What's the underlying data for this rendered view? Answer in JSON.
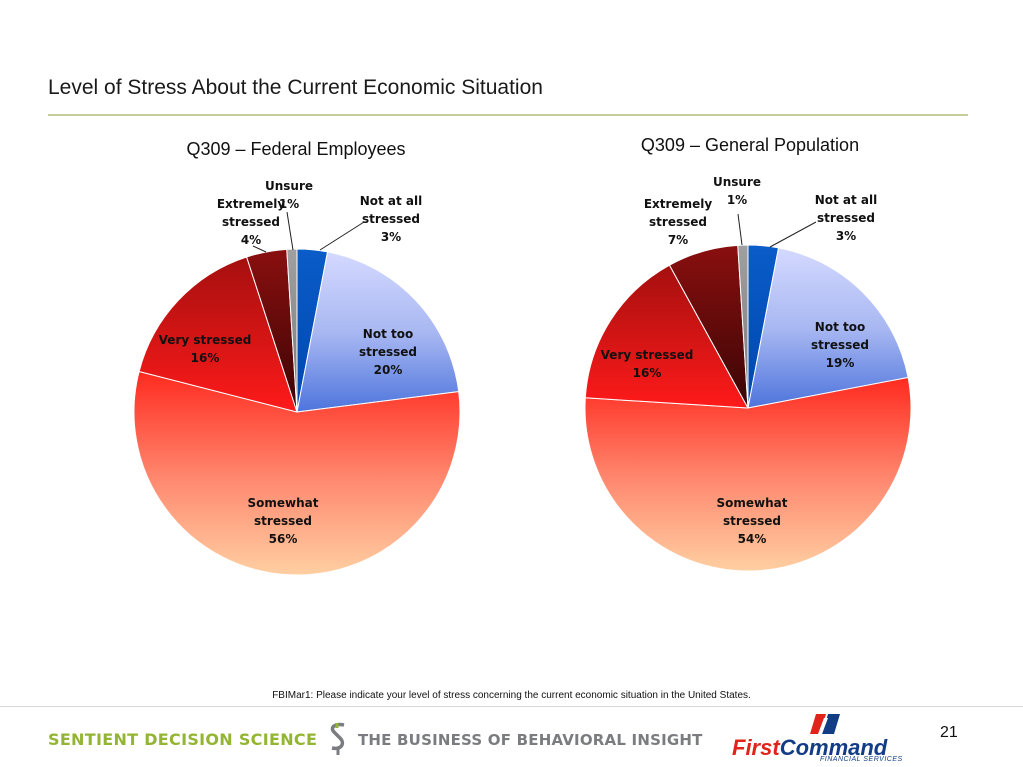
{
  "slide": {
    "title": "Level of Stress About the Current Economic Situation",
    "footnote": "FBIMar1: Please indicate your level of stress concerning the current economic situation in the United States.",
    "page_number": "21"
  },
  "branding": {
    "left_logo_text": "SENTIENT DECISION SCIENCE",
    "tagline": "THE BUSINESS OF BEHAVIORAL INSIGHT",
    "right_logo_first": "First",
    "right_logo_command": "Command",
    "right_logo_sub": "FINANCIAL SERVICES"
  },
  "colors": {
    "not_at_all": "#0a5cc8",
    "not_too": "#b9c4f4",
    "somewhat": "#ff5a44",
    "very": "#e81313",
    "extremely": "#6b0a0a",
    "unsure": "#8c8c8c"
  },
  "chart_data": [
    {
      "type": "pie",
      "title": "Q309 – Federal Employees",
      "slices": [
        {
          "key": "not_at_all",
          "lines": [
            "Not at all",
            "stressed",
            "3%"
          ],
          "value": 3
        },
        {
          "key": "not_too",
          "lines": [
            "Not too",
            "stressed",
            "20%"
          ],
          "value": 20
        },
        {
          "key": "somewhat",
          "lines": [
            "Somewhat",
            "stressed",
            "56%"
          ],
          "value": 56
        },
        {
          "key": "very",
          "lines": [
            "Very stressed",
            "16%"
          ],
          "value": 16
        },
        {
          "key": "extremely",
          "lines": [
            "Extremely",
            "stressed",
            "4%"
          ],
          "value": 4
        },
        {
          "key": "unsure",
          "lines": [
            "Unsure",
            "1%"
          ],
          "value": 1
        }
      ]
    },
    {
      "type": "pie",
      "title": "Q309 – General Population",
      "slices": [
        {
          "key": "not_at_all",
          "lines": [
            "Not at all",
            "stressed",
            "3%"
          ],
          "value": 3
        },
        {
          "key": "not_too",
          "lines": [
            "Not too",
            "stressed",
            "19%"
          ],
          "value": 19
        },
        {
          "key": "somewhat",
          "lines": [
            "Somewhat",
            "stressed",
            "54%"
          ],
          "value": 54
        },
        {
          "key": "very",
          "lines": [
            "Very stressed",
            "16%"
          ],
          "value": 16
        },
        {
          "key": "extremely",
          "lines": [
            "Extremely",
            "stressed",
            "7%"
          ],
          "value": 7
        },
        {
          "key": "unsure",
          "lines": [
            "Unsure",
            "1%"
          ],
          "value": 1
        }
      ]
    }
  ]
}
